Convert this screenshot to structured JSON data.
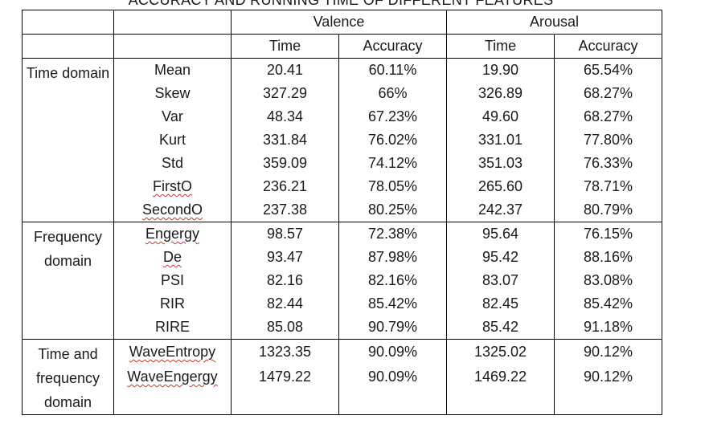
{
  "title": "ACCURACY AND RUNNING TIME OF DIFFERENT FEATURES",
  "header": {
    "valence": "Valence",
    "arousal": "Arousal",
    "time": "Time",
    "accuracy": "Accuracy"
  },
  "groups": {
    "time_domain": "Time domain",
    "frequency_domain": "Frequency domain",
    "time_freq_domain": "Time and frequency domain"
  },
  "rows": [
    {
      "feature": "Mean",
      "v_time": "20.41",
      "v_acc": "60.11%",
      "a_time": "19.90",
      "a_acc": "65.54%"
    },
    {
      "feature": "Skew",
      "v_time": "327.29",
      "v_acc": "66%",
      "a_time": "326.89",
      "a_acc": "68.27%"
    },
    {
      "feature": "Var",
      "v_time": "48.34",
      "v_acc": "67.23%",
      "a_time": "49.60",
      "a_acc": "68.27%"
    },
    {
      "feature": "Kurt",
      "v_time": "331.84",
      "v_acc": "76.02%",
      "a_time": "331.01",
      "a_acc": "77.80%"
    },
    {
      "feature": "Std",
      "v_time": "359.09",
      "v_acc": "74.12%",
      "a_time": "351.03",
      "a_acc": "76.33%"
    },
    {
      "feature": "FirstO",
      "v_time": "236.21",
      "v_acc": "78.05%",
      "a_time": "265.60",
      "a_acc": "78.71%"
    },
    {
      "feature": "SecondO",
      "v_time": "237.38",
      "v_acc": "80.25%",
      "a_time": "242.37",
      "a_acc": "80.79%"
    },
    {
      "feature": "Engergy",
      "v_time": "98.57",
      "v_acc": "72.38%",
      "a_time": "95.64",
      "a_acc": "76.15%"
    },
    {
      "feature": "De",
      "v_time": "93.47",
      "v_acc": "87.98%",
      "a_time": "95.42",
      "a_acc": "88.16%"
    },
    {
      "feature": "PSI",
      "v_time": "82.16",
      "v_acc": "82.16%",
      "a_time": "83.07",
      "a_acc": "83.08%"
    },
    {
      "feature": "RIR",
      "v_time": "82.44",
      "v_acc": "85.42%",
      "a_time": "82.45",
      "a_acc": "85.42%"
    },
    {
      "feature": "RIRE",
      "v_time": "85.08",
      "v_acc": "90.79%",
      "a_time": "85.42",
      "a_acc": "91.18%"
    },
    {
      "feature": "WaveEntropy",
      "v_time": "1323.35",
      "v_acc": "90.09%",
      "a_time": "1325.02",
      "a_acc": "90.12%"
    },
    {
      "feature": "WaveEngergy",
      "v_time": "1479.22",
      "v_acc": "90.09%",
      "a_time": "1469.22",
      "a_acc": "90.12%"
    }
  ]
}
